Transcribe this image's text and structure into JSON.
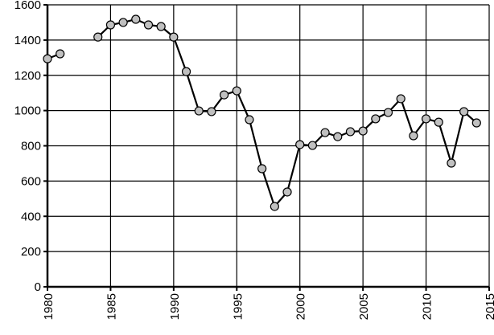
{
  "chart_data": {
    "type": "line",
    "title": "",
    "xlabel": "",
    "ylabel": "",
    "xlim": [
      1980,
      2015
    ],
    "ylim": [
      0,
      1600
    ],
    "grid": true,
    "x_ticks": [
      "1980",
      "1985",
      "1990",
      "1995",
      "2000",
      "2005",
      "2010",
      "2015"
    ],
    "y_ticks": [
      "0",
      "200",
      "400",
      "600",
      "800",
      "1000",
      "1200",
      "1400",
      "1600"
    ],
    "marker_color": "#c0c0c0",
    "line_color": "#000000",
    "series": [
      {
        "x": [
          1980,
          1981,
          1982,
          1983,
          1984,
          1985,
          1986,
          1987,
          1988,
          1989,
          1990,
          1991,
          1992,
          1993,
          1994,
          1995,
          1996,
          1997,
          1998,
          1999,
          2000,
          2001,
          2002,
          2003,
          2004,
          2005,
          2006,
          2007,
          2008,
          2009,
          2010,
          2011,
          2012,
          2013,
          2014
        ],
        "y": [
          1294,
          1322,
          null,
          null,
          1417,
          1486,
          1500,
          1518,
          1486,
          1477,
          1417,
          1221,
          998,
          994,
          1089,
          1112,
          948,
          670,
          456,
          538,
          807,
          802,
          875,
          852,
          880,
          884,
          953,
          989,
          1067,
          857,
          953,
          934,
          702,
          994,
          930
        ]
      }
    ]
  }
}
